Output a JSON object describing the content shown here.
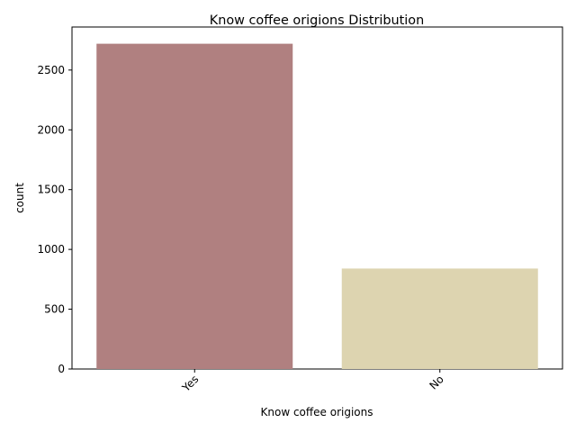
{
  "chart_data": {
    "type": "bar",
    "title": "Know coffee origions Distribution",
    "xlabel": "Know coffee origions",
    "ylabel": "count",
    "categories": [
      "Yes",
      "No"
    ],
    "values": [
      2720,
      840
    ],
    "ylim": [
      0,
      2860
    ],
    "yticks": [
      0,
      500,
      1000,
      1500,
      2000,
      2500
    ],
    "bar_colors": [
      "#b08080",
      "#ddd4b0"
    ],
    "xtick_rotation_deg": 45,
    "grid": false,
    "legend": "none"
  }
}
